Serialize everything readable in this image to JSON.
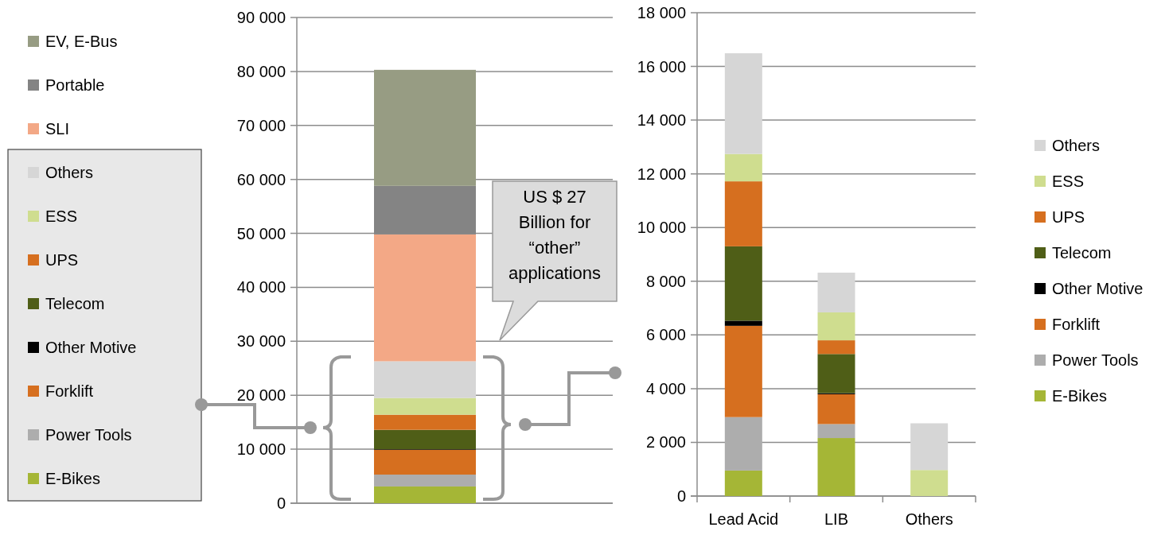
{
  "chart_data": [
    {
      "type": "bar",
      "stacked": true,
      "categories": [
        null
      ],
      "ylim": [
        0,
        90000
      ],
      "yticks": [
        {
          "value": 0,
          "label": "0"
        },
        {
          "value": 10000,
          "label": "10 000"
        },
        {
          "value": 20000,
          "label": "20 000"
        },
        {
          "value": 30000,
          "label": "30 000"
        },
        {
          "value": 40000,
          "label": "40 000"
        },
        {
          "value": 50000,
          "label": "50 000"
        },
        {
          "value": 60000,
          "label": "60 000"
        },
        {
          "value": 70000,
          "label": "70 000"
        },
        {
          "value": 80000,
          "label": "80 000"
        },
        {
          "value": 90000,
          "label": "90 000"
        }
      ],
      "grid": "y",
      "legend": "left",
      "annotations": [
        "US $ 27 Billion for “other” applications"
      ],
      "series": [
        {
          "name": "E-Bikes",
          "color": "#a5b636",
          "values": [
            3100
          ]
        },
        {
          "name": "Power Tools",
          "color": "#adadad",
          "values": [
            2200
          ]
        },
        {
          "name": "Forklift",
          "color": "#d66f1f",
          "values": [
            4600
          ]
        },
        {
          "name": "Other Motive",
          "color": "#000000",
          "values": [
            100
          ]
        },
        {
          "name": "Telecom",
          "color": "#4f5e17",
          "values": [
            3600
          ]
        },
        {
          "name": "UPS",
          "color": "#d66f1f",
          "values": [
            2800
          ]
        },
        {
          "name": "ESS",
          "color": "#cfdd8f",
          "values": [
            3100
          ]
        },
        {
          "name": "Others",
          "color": "#d6d6d6",
          "values": [
            6800
          ]
        },
        {
          "name": "SLI",
          "color": "#f3a886",
          "values": [
            23500
          ]
        },
        {
          "name": "Portable",
          "color": "#848484",
          "values": [
            9000
          ]
        },
        {
          "name": "EV, E-Bus",
          "color": "#979c83",
          "values": [
            21500
          ]
        }
      ]
    },
    {
      "type": "bar",
      "stacked": true,
      "categories": [
        "Lead Acid",
        "LIB",
        "Others"
      ],
      "ylim": [
        0,
        18000
      ],
      "yticks": [
        {
          "value": 0,
          "label": "0"
        },
        {
          "value": 2000,
          "label": "2 000"
        },
        {
          "value": 4000,
          "label": "4 000"
        },
        {
          "value": 6000,
          "label": "6 000"
        },
        {
          "value": 8000,
          "label": "8 000"
        },
        {
          "value": 10000,
          "label": "10 000"
        },
        {
          "value": 12000,
          "label": "12 000"
        },
        {
          "value": 14000,
          "label": "14 000"
        },
        {
          "value": 16000,
          "label": "16 000"
        },
        {
          "value": 18000,
          "label": "18 000"
        }
      ],
      "grid": "y",
      "legend": "right",
      "series": [
        {
          "name": "E-Bikes",
          "color": "#a5b636",
          "values": [
            950,
            2160,
            null
          ]
        },
        {
          "name": "Power Tools",
          "color": "#adadad",
          "values": [
            1990,
            520,
            null
          ]
        },
        {
          "name": "Forklift",
          "color": "#d66f1f",
          "values": [
            3400,
            1110,
            null
          ]
        },
        {
          "name": "Other Motive",
          "color": "#000000",
          "values": [
            190,
            40,
            null
          ]
        },
        {
          "name": "Telecom",
          "color": "#4f5e17",
          "values": [
            2770,
            1460,
            null
          ]
        },
        {
          "name": "UPS",
          "color": "#d66f1f",
          "values": [
            2420,
            510,
            null
          ]
        },
        {
          "name": "ESS",
          "color": "#cfdd8f",
          "values": [
            1020,
            1040,
            970
          ]
        },
        {
          "name": "Others",
          "color": "#d6d6d6",
          "values": [
            3750,
            1480,
            1740
          ]
        }
      ]
    }
  ]
}
